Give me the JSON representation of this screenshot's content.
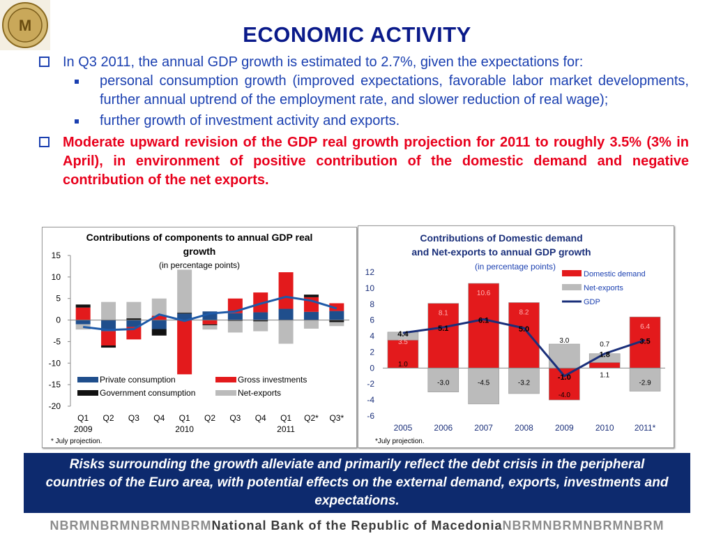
{
  "title": "ECONOMIC ACTIVITY",
  "bullets": {
    "b1": "In Q3 2011, the annual GDP growth is estimated to 2.7%, given the expectations for:",
    "s1": "personal consumption growth (improved expectations, favorable labor market developments, further annual uptrend of the employment rate, and slower reduction of real wage);",
    "s2": "further growth of investment activity and exports.",
    "b2": "Moderate upward revision of the GDP real growth projection for 2011 to roughly 3.5% (3% in April), in environment of positive contribution of the domestic demand and negative contribution of the net exports."
  },
  "banner": "Risks surrounding the growth alleviate and primarily reflect the debt crisis in the peripheral countries of the Euro area, with potential effects on the external demand, exports, investments and expectations.",
  "footer": {
    "a": "NBRMNBRMNBRMNBRM",
    "b": "National Bank of the Republic of Macedonia",
    "c": "NBRMNBRMNBRMNBRM"
  },
  "colors": {
    "title": "#0a1a8a",
    "text_blue": "#1a3fb0",
    "text_red": "#e8001c",
    "banner": "#0d2a6e"
  },
  "chart_data": [
    {
      "type": "bar",
      "stacked": true,
      "title": "Contributions of components to annual GDP real growth",
      "subtitle": "(in percentage points)",
      "categories": [
        "Q1",
        "Q2",
        "Q3",
        "Q4",
        "Q1",
        "Q2",
        "Q3",
        "Q4",
        "Q1",
        "Q2*",
        "Q3*"
      ],
      "year_labels": [
        "2009",
        "2010",
        "2011"
      ],
      "ylim": [
        -20,
        15
      ],
      "yticks": [
        15,
        10,
        5,
        0,
        -5,
        -10,
        -15,
        -20
      ],
      "series": [
        {
          "name": "Private consumption",
          "color": "#1f4e8c",
          "values": [
            -1.0,
            -2.6,
            -1.6,
            -2.1,
            1.5,
            2.0,
            1.6,
            1.8,
            2.6,
            1.9,
            2.1
          ]
        },
        {
          "name": "Gross investments",
          "color": "#e31a1c",
          "values": [
            2.9,
            -3.3,
            -2.9,
            1.0,
            -12.6,
            -1.0,
            3.4,
            4.6,
            8.5,
            3.4,
            1.8
          ]
        },
        {
          "name": "Government consumption",
          "color": "#111111",
          "values": [
            0.7,
            -0.5,
            0.4,
            -1.5,
            0.2,
            -0.2,
            -0.2,
            -0.3,
            0.0,
            0.6,
            -0.5
          ]
        },
        {
          "name": "Net-exports",
          "color": "#bbbbbb",
          "values": [
            -1.2,
            4.2,
            3.8,
            4.0,
            10.0,
            -1.0,
            -2.7,
            -2.3,
            -5.5,
            -2.0,
            -0.9
          ]
        }
      ],
      "gdp": [
        -1.6,
        -2.3,
        -2.1,
        1.3,
        -0.2,
        1.5,
        2.0,
        3.8,
        5.4,
        4.5,
        2.7
      ],
      "note": "* July projection."
    },
    {
      "type": "bar",
      "stacked": true,
      "title": "Contributions of Domestic demand and Net-exports to annual GDP growth",
      "subtitle": "(in percentage points)",
      "categories": [
        "2005",
        "2006",
        "2007",
        "2008",
        "2009",
        "2010",
        "2011*"
      ],
      "ylim": [
        -6,
        12
      ],
      "yticks": [
        12,
        10,
        8,
        6,
        4,
        2,
        0,
        -2,
        -4,
        -6
      ],
      "series": [
        {
          "name": "Domestic demand",
          "color": "#e31a1c",
          "values": [
            3.5,
            8.1,
            10.6,
            8.2,
            -4.0,
            0.7,
            6.4
          ]
        },
        {
          "name": "Net-exports",
          "color": "#bbbbbb",
          "values": [
            1.0,
            -3.0,
            -4.5,
            -3.2,
            3.0,
            1.1,
            -2.9
          ]
        }
      ],
      "gdp": [
        4.4,
        5.1,
        6.1,
        5.0,
        -1.0,
        1.8,
        3.5
      ],
      "gdp_name": "GDP",
      "note": "*July projection."
    }
  ]
}
